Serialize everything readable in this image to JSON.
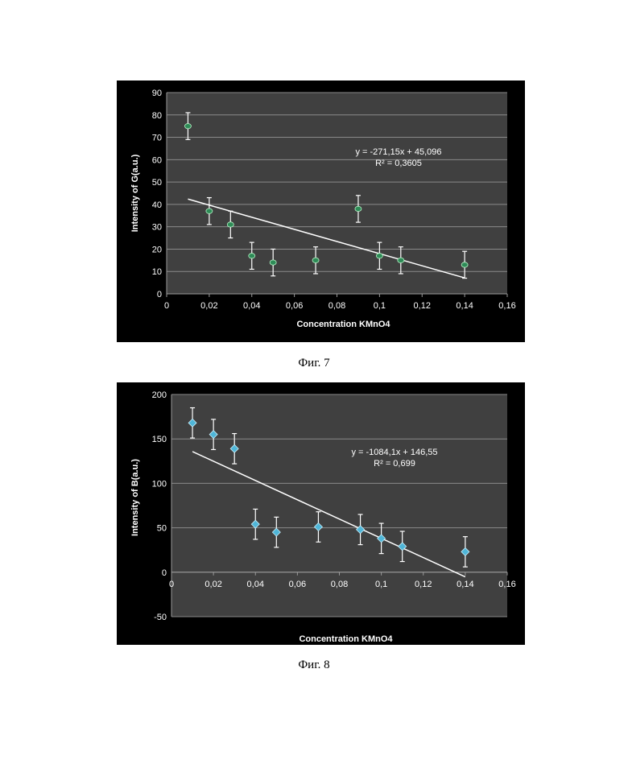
{
  "chart_data": [
    {
      "type": "scatter",
      "title": "",
      "xlabel": "Concentration KMnO4",
      "ylabel": "Intensity of G(a.u.)",
      "xlim": [
        0,
        0.16
      ],
      "ylim": [
        0,
        90
      ],
      "x_ticks": [
        "0",
        "0,02",
        "0,04",
        "0,06",
        "0,08",
        "0,1",
        "0,12",
        "0,14",
        "0,16"
      ],
      "y_ticks": [
        "0",
        "10",
        "20",
        "30",
        "40",
        "50",
        "60",
        "70",
        "80",
        "90"
      ],
      "grid": true,
      "marker_color": "#2e8b57",
      "series": [
        {
          "x": [
            0.01,
            0.02,
            0.03,
            0.04,
            0.05,
            0.07,
            0.09,
            0.1,
            0.11,
            0.14
          ],
          "y": [
            75,
            37,
            31,
            17,
            14,
            15,
            38,
            17,
            15,
            13
          ],
          "error": 6
        }
      ],
      "trendline": {
        "slope": -271.15,
        "intercept": 45.096,
        "x_range": [
          0.01,
          0.14
        ]
      },
      "equation": "y = -271,15x + 45,096",
      "r2": "R² = 0,3605",
      "caption": "Фиг. 7"
    },
    {
      "type": "scatter",
      "title": "",
      "xlabel": "Concentration KMnO4",
      "ylabel": "Intensity of B(a.u.)",
      "xlim": [
        0,
        0.16
      ],
      "ylim": [
        -50,
        200
      ],
      "x_ticks": [
        "0",
        "0,02",
        "0,04",
        "0,06",
        "0,08",
        "0,1",
        "0,12",
        "0,14",
        "0,16"
      ],
      "y_ticks": [
        "-50",
        "0",
        "50",
        "100",
        "150",
        "200"
      ],
      "grid": true,
      "marker_color": "#4fb6d8",
      "series": [
        {
          "x": [
            0.01,
            0.02,
            0.03,
            0.04,
            0.05,
            0.07,
            0.09,
            0.1,
            0.11,
            0.14
          ],
          "y": [
            168,
            155,
            139,
            54,
            45,
            51,
            48,
            38,
            29,
            23
          ],
          "error": 17
        }
      ],
      "trendline": {
        "slope": -1084.1,
        "intercept": 146.55,
        "x_range": [
          0.01,
          0.14
        ]
      },
      "equation": "y = -1084,1x + 146,55",
      "r2": "R² = 0,699",
      "caption": "Фиг. 8"
    }
  ]
}
